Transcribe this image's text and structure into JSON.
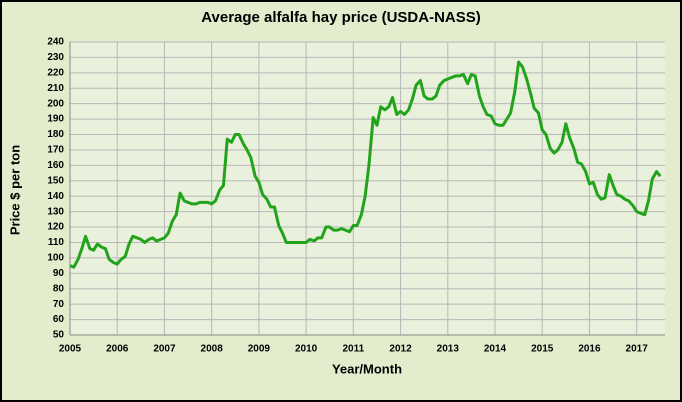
{
  "chart_data": {
    "type": "line",
    "title": "Average alfalfa hay price (USDA-NASS)",
    "x_label": "Year/Month",
    "y_label": "Price $ per ton",
    "xlim": [
      2005,
      2017.6
    ],
    "xticks": [
      2005,
      2006,
      2007,
      2008,
      2009,
      2010,
      2011,
      2012,
      2013,
      2014,
      2015,
      2016,
      2017
    ],
    "ylim": [
      50,
      240
    ],
    "yticks": [
      50,
      60,
      70,
      80,
      90,
      100,
      110,
      120,
      130,
      140,
      150,
      160,
      170,
      180,
      190,
      200,
      210,
      220,
      230,
      240
    ],
    "grid": true,
    "x": [
      2005,
      2005.08,
      2005.17,
      2005.25,
      2005.33,
      2005.42,
      2005.5,
      2005.58,
      2005.67,
      2005.75,
      2005.83,
      2005.92,
      2006,
      2006.08,
      2006.17,
      2006.25,
      2006.33,
      2006.42,
      2006.5,
      2006.58,
      2006.67,
      2006.75,
      2006.83,
      2006.92,
      2007,
      2007.08,
      2007.17,
      2007.25,
      2007.33,
      2007.42,
      2007.5,
      2007.58,
      2007.67,
      2007.75,
      2007.83,
      2007.92,
      2008,
      2008.08,
      2008.17,
      2008.25,
      2008.33,
      2008.42,
      2008.5,
      2008.58,
      2008.67,
      2008.75,
      2008.83,
      2008.92,
      2009,
      2009.08,
      2009.17,
      2009.25,
      2009.33,
      2009.42,
      2009.5,
      2009.58,
      2009.67,
      2009.75,
      2009.83,
      2009.92,
      2010,
      2010.08,
      2010.17,
      2010.25,
      2010.33,
      2010.42,
      2010.5,
      2010.58,
      2010.67,
      2010.75,
      2010.83,
      2010.92,
      2011,
      2011.08,
      2011.17,
      2011.25,
      2011.33,
      2011.42,
      2011.5,
      2011.58,
      2011.67,
      2011.75,
      2011.83,
      2011.92,
      2012,
      2012.08,
      2012.17,
      2012.25,
      2012.33,
      2012.42,
      2012.5,
      2012.58,
      2012.67,
      2012.75,
      2012.83,
      2012.92,
      2013,
      2013.08,
      2013.17,
      2013.25,
      2013.33,
      2013.42,
      2013.5,
      2013.58,
      2013.67,
      2013.75,
      2013.83,
      2013.92,
      2014,
      2014.08,
      2014.17,
      2014.25,
      2014.33,
      2014.42,
      2014.5,
      2014.58,
      2014.67,
      2014.75,
      2014.83,
      2014.92,
      2015,
      2015.08,
      2015.17,
      2015.25,
      2015.33,
      2015.42,
      2015.5,
      2015.58,
      2015.67,
      2015.75,
      2015.83,
      2015.92,
      2016,
      2016.08,
      2016.17,
      2016.25,
      2016.33,
      2016.42,
      2016.5,
      2016.58,
      2016.67,
      2016.75,
      2016.83,
      2016.92,
      2017,
      2017.08,
      2017.17,
      2017.25,
      2017.33,
      2017.42,
      2017.5
    ],
    "series": [
      {
        "name": "Average alfalfa hay price",
        "color": "#22a31c",
        "values": [
          95,
          94,
          99,
          106,
          114,
          106,
          105,
          109,
          107,
          106,
          99,
          97,
          96,
          99,
          101,
          109,
          114,
          113,
          112,
          110,
          112,
          113,
          111,
          112,
          113,
          116,
          124,
          128,
          142,
          137,
          136,
          135,
          135,
          136,
          136,
          136,
          135,
          137,
          144,
          147,
          177,
          175,
          180,
          180,
          174,
          170,
          165,
          153,
          149,
          141,
          138,
          133,
          133,
          121,
          116,
          110,
          110,
          110,
          110,
          110,
          110,
          112,
          111,
          113,
          113,
          120,
          120,
          118,
          118,
          119,
          118,
          117,
          121,
          121,
          128,
          140,
          160,
          191,
          186,
          198,
          196,
          198,
          204,
          193,
          195,
          193,
          196,
          203,
          212,
          215,
          205,
          203,
          203,
          205,
          212,
          215,
          216,
          217,
          218,
          218,
          219,
          213,
          219,
          218,
          205,
          198,
          193,
          192,
          187,
          186,
          186,
          190,
          194,
          208,
          227,
          224,
          216,
          207,
          197,
          194,
          183,
          180,
          171,
          168,
          170,
          175,
          187,
          178,
          171,
          162,
          161,
          156,
          148,
          149,
          141,
          138,
          139,
          154,
          147,
          141,
          140,
          138,
          137,
          134,
          130,
          129,
          128,
          137,
          151,
          156,
          153
        ]
      }
    ]
  }
}
